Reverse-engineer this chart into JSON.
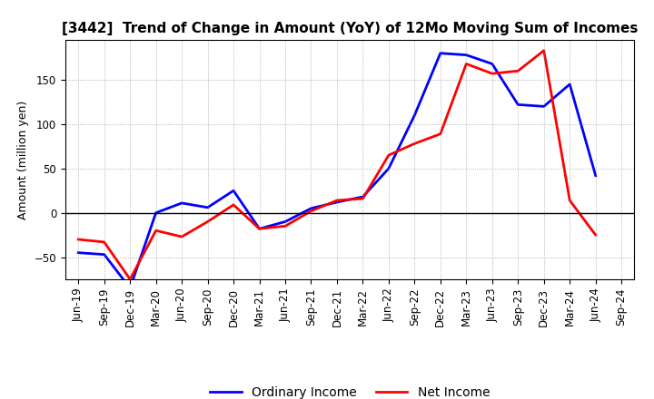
{
  "title": "[3442]  Trend of Change in Amount (YoY) of 12Mo Moving Sum of Incomes",
  "ylabel": "Amount (million yen)",
  "x_labels": [
    "Jun-19",
    "Sep-19",
    "Dec-19",
    "Mar-20",
    "Jun-20",
    "Sep-20",
    "Dec-20",
    "Mar-21",
    "Jun-21",
    "Sep-21",
    "Dec-21",
    "Mar-22",
    "Jun-22",
    "Sep-22",
    "Dec-22",
    "Mar-23",
    "Jun-23",
    "Sep-23",
    "Dec-23",
    "Mar-24",
    "Jun-24",
    "Sep-24"
  ],
  "ordinary_income": [
    -45,
    -47,
    -85,
    0,
    11,
    6,
    25,
    -18,
    -10,
    5,
    12,
    18,
    50,
    110,
    180,
    178,
    168,
    122,
    120,
    145,
    42,
    null
  ],
  "net_income": [
    -30,
    -33,
    -75,
    -20,
    -27,
    -10,
    9,
    -18,
    -15,
    2,
    14,
    16,
    65,
    78,
    89,
    168,
    157,
    160,
    183,
    14,
    -25,
    null
  ],
  "ordinary_color": "#0000ff",
  "net_color": "#ff0000",
  "ylim": [
    -75,
    195
  ],
  "yticks": [
    -50,
    0,
    50,
    100,
    150
  ],
  "bg_color": "#ffffff",
  "grid_color": "#888888",
  "title_fontsize": 11,
  "axis_label_fontsize": 9,
  "tick_fontsize": 8.5,
  "legend_fontsize": 10,
  "linewidth": 2.0
}
